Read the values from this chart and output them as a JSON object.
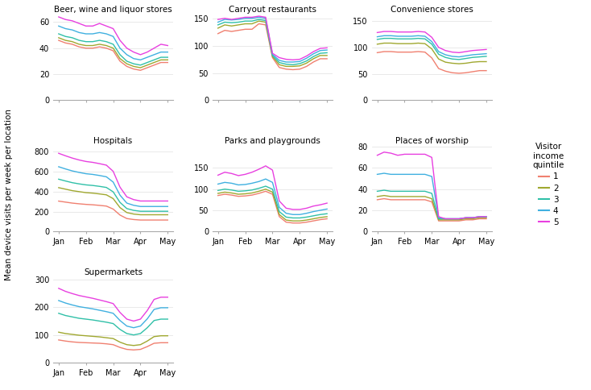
{
  "colors": {
    "1": "#f08070",
    "2": "#a0a830",
    "3": "#30c0a8",
    "4": "#40b0e0",
    "5": "#e840e0"
  },
  "x_ticks": [
    "Jan",
    "Feb",
    "Mar",
    "Apr",
    "May"
  ],
  "ylabel": "Mean device visits per week per location",
  "legend_title": "Visitor\nincome\nquintile",
  "legend_labels": [
    "1",
    "2",
    "3",
    "4",
    "5"
  ],
  "panels": {
    "Beer, wine and liquor stores": {
      "ylim": [
        0,
        65
      ],
      "yticks": [
        0,
        20,
        40,
        60
      ],
      "show_xlabels": false,
      "data": {
        "1": [
          46,
          44,
          43,
          41,
          40,
          40,
          41,
          40,
          38,
          30,
          26,
          24,
          23,
          25,
          27,
          29,
          29
        ],
        "2": [
          48,
          46,
          45,
          43,
          42,
          42,
          43,
          42,
          40,
          32,
          28,
          26,
          25,
          27,
          29,
          31,
          31
        ],
        "3": [
          51,
          49,
          48,
          46,
          45,
          45,
          46,
          45,
          43,
          35,
          30,
          28,
          27,
          29,
          31,
          33,
          33
        ],
        "4": [
          57,
          55,
          54,
          52,
          51,
          51,
          52,
          51,
          49,
          40,
          35,
          32,
          31,
          33,
          35,
          37,
          37
        ],
        "5": [
          64,
          62,
          61,
          59,
          57,
          57,
          59,
          57,
          55,
          46,
          40,
          37,
          35,
          37,
          40,
          43,
          42
        ]
      }
    },
    "Carryout restaurants": {
      "ylim": [
        0,
        155
      ],
      "yticks": [
        0,
        50,
        100,
        150
      ],
      "show_xlabels": false,
      "data": {
        "1": [
          122,
          128,
          126,
          128,
          130,
          130,
          140,
          138,
          78,
          60,
          57,
          56,
          57,
          62,
          70,
          76,
          76
        ],
        "2": [
          132,
          138,
          136,
          138,
          140,
          140,
          145,
          143,
          80,
          65,
          62,
          62,
          63,
          68,
          76,
          82,
          82
        ],
        "3": [
          138,
          143,
          142,
          143,
          145,
          145,
          148,
          146,
          82,
          69,
          66,
          65,
          67,
          72,
          80,
          86,
          87
        ],
        "4": [
          143,
          148,
          147,
          148,
          150,
          150,
          152,
          150,
          84,
          73,
          70,
          70,
          71,
          77,
          85,
          91,
          92
        ],
        "5": [
          148,
          150,
          148,
          150,
          152,
          152,
          154,
          152,
          86,
          78,
          75,
          74,
          75,
          81,
          89,
          95,
          96
        ]
      }
    },
    "Convenience stores": {
      "ylim": [
        0,
        160
      ],
      "yticks": [
        0,
        50,
        100,
        150
      ],
      "show_xlabels": false,
      "data": {
        "1": [
          90,
          92,
          92,
          91,
          91,
          91,
          92,
          91,
          80,
          60,
          55,
          52,
          51,
          52,
          54,
          56,
          56
        ],
        "2": [
          106,
          108,
          108,
          107,
          107,
          107,
          108,
          107,
          97,
          78,
          72,
          70,
          69,
          70,
          72,
          73,
          73
        ],
        "3": [
          115,
          117,
          117,
          116,
          116,
          116,
          117,
          116,
          106,
          87,
          81,
          78,
          77,
          79,
          81,
          82,
          83
        ],
        "4": [
          120,
          122,
          122,
          121,
          121,
          121,
          122,
          121,
          111,
          92,
          86,
          83,
          82,
          84,
          86,
          87,
          88
        ],
        "5": [
          128,
          130,
          130,
          129,
          129,
          129,
          130,
          129,
          119,
          100,
          94,
          91,
          90,
          92,
          94,
          95,
          96
        ]
      }
    },
    "Hospitals": {
      "ylim": [
        0,
        850
      ],
      "yticks": [
        0,
        200,
        400,
        600,
        800
      ],
      "show_xlabels": true,
      "data": {
        "1": [
          305,
          295,
          285,
          278,
          272,
          268,
          262,
          255,
          225,
          165,
          130,
          120,
          115,
          115,
          115,
          115,
          115
        ],
        "2": [
          440,
          425,
          410,
          400,
          390,
          385,
          377,
          368,
          330,
          240,
          190,
          175,
          168,
          168,
          168,
          168,
          168
        ],
        "3": [
          525,
          507,
          490,
          478,
          468,
          462,
          453,
          442,
          398,
          292,
          230,
          212,
          203,
          203,
          203,
          203,
          203
        ],
        "4": [
          650,
          628,
          608,
          593,
          580,
          573,
          562,
          549,
          496,
          365,
          285,
          263,
          251,
          251,
          251,
          251,
          251
        ],
        "5": [
          785,
          760,
          737,
          718,
          703,
          694,
          681,
          666,
          604,
          445,
          348,
          320,
          306,
          306,
          306,
          306,
          306
        ]
      }
    },
    "Parks and playgrounds": {
      "ylim": [
        0,
        200
      ],
      "yticks": [
        0,
        50,
        100,
        150
      ],
      "show_xlabels": true,
      "data": {
        "1": [
          85,
          88,
          86,
          83,
          84,
          86,
          90,
          95,
          88,
          35,
          22,
          20,
          20,
          22,
          25,
          28,
          30
        ],
        "2": [
          90,
          93,
          91,
          88,
          89,
          91,
          95,
          100,
          93,
          40,
          27,
          25,
          25,
          27,
          30,
          33,
          35
        ],
        "3": [
          97,
          100,
          98,
          95,
          96,
          98,
          102,
          107,
          100,
          47,
          34,
          32,
          32,
          34,
          37,
          40,
          42
        ],
        "4": [
          112,
          116,
          114,
          110,
          111,
          114,
          118,
          124,
          116,
          57,
          43,
          40,
          40,
          43,
          47,
          50,
          53
        ],
        "5": [
          133,
          140,
          137,
          132,
          135,
          140,
          147,
          155,
          145,
          72,
          55,
          52,
          52,
          55,
          60,
          63,
          67
        ]
      }
    },
    "Places of worship": {
      "ylim": [
        0,
        80
      ],
      "yticks": [
        0,
        20,
        40,
        60,
        80
      ],
      "show_xlabels": true,
      "data": {
        "1": [
          30,
          31,
          30,
          30,
          30,
          30,
          30,
          30,
          28,
          10,
          10,
          10,
          10,
          11,
          11,
          12,
          12
        ],
        "2": [
          33,
          34,
          33,
          33,
          33,
          33,
          33,
          33,
          31,
          11,
          11,
          11,
          11,
          12,
          12,
          13,
          13
        ],
        "3": [
          38,
          39,
          38,
          38,
          38,
          38,
          38,
          38,
          36,
          12,
          12,
          12,
          12,
          13,
          13,
          14,
          14
        ],
        "4": [
          54,
          55,
          54,
          54,
          54,
          54,
          54,
          54,
          52,
          13,
          12,
          12,
          12,
          13,
          13,
          14,
          14
        ],
        "5": [
          72,
          75,
          74,
          72,
          73,
          73,
          73,
          73,
          70,
          14,
          12,
          12,
          12,
          13,
          13,
          14,
          14
        ]
      }
    },
    "Supermarkets": {
      "ylim": [
        0,
        305
      ],
      "yticks": [
        0,
        100,
        200,
        300
      ],
      "show_xlabels": true,
      "data": {
        "1": [
          82,
          78,
          75,
          73,
          72,
          71,
          70,
          68,
          65,
          55,
          48,
          46,
          48,
          58,
          70,
          72,
          72
        ],
        "2": [
          110,
          105,
          102,
          99,
          97,
          95,
          93,
          90,
          87,
          74,
          65,
          62,
          65,
          78,
          94,
          97,
          97
        ],
        "3": [
          178,
          170,
          165,
          160,
          157,
          154,
          150,
          146,
          141,
          120,
          105,
          100,
          105,
          126,
          152,
          157,
          157
        ],
        "4": [
          224,
          215,
          208,
          202,
          198,
          194,
          189,
          184,
          178,
          152,
          132,
          126,
          132,
          158,
          192,
          198,
          198
        ],
        "5": [
          268,
          257,
          249,
          242,
          237,
          232,
          226,
          220,
          213,
          181,
          157,
          150,
          157,
          188,
          228,
          236,
          236
        ]
      }
    }
  }
}
